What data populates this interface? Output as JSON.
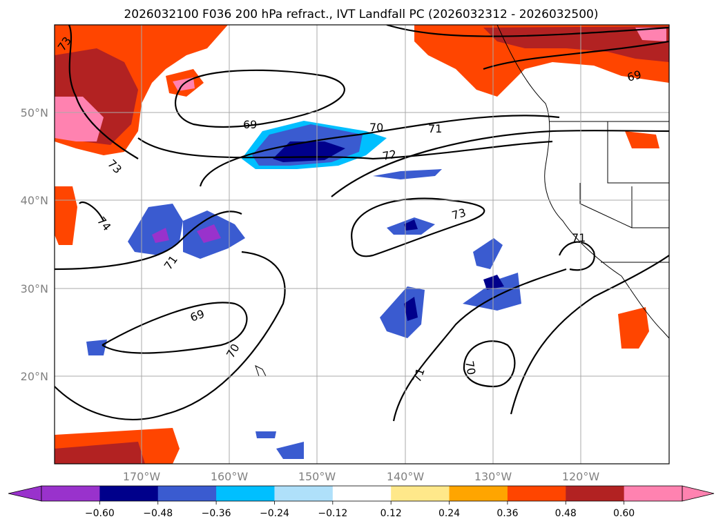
{
  "title": "2026032100 F036 200 hPa refract., IVT Landfall PC (2026032312 - 2026032500)",
  "map": {
    "lon_labels": [
      "170°W",
      "160°W",
      "150°W",
      "140°W",
      "130°W",
      "120°W"
    ],
    "lat_labels": [
      "50°N",
      "40°N",
      "30°N",
      "20°N"
    ],
    "contour_labels": [
      "73",
      "69",
      "70",
      "71",
      "72",
      "73",
      "74",
      "71",
      "69",
      "70",
      "71",
      "70",
      "73",
      "71",
      "69"
    ]
  },
  "colorbar": {
    "ticks": [
      "−0.60",
      "−0.48",
      "−0.36",
      "−0.24",
      "−0.12",
      "0.12",
      "0.24",
      "0.36",
      "0.48",
      "0.60"
    ],
    "colors": [
      "#9932cc",
      "#00008b",
      "#3a5bd0",
      "#00bfff",
      "#afe0fa",
      "#ffffff",
      "#ffe88a",
      "#ffa500",
      "#ff4500",
      "#b22222",
      "#ff82b0",
      "#ff82b0"
    ]
  },
  "colors": {
    "neg_strong": "#9932cc",
    "neg_dark": "#00008b",
    "neg_mid": "#3a5bd0",
    "neg_light": "#00bfff",
    "neg_pale": "#afe0fa",
    "pos_pale": "#ffe88a",
    "pos_orange": "#ffa500",
    "pos_red": "#ff4500",
    "pos_dark": "#b22222",
    "pos_pink": "#ff82b0"
  }
}
